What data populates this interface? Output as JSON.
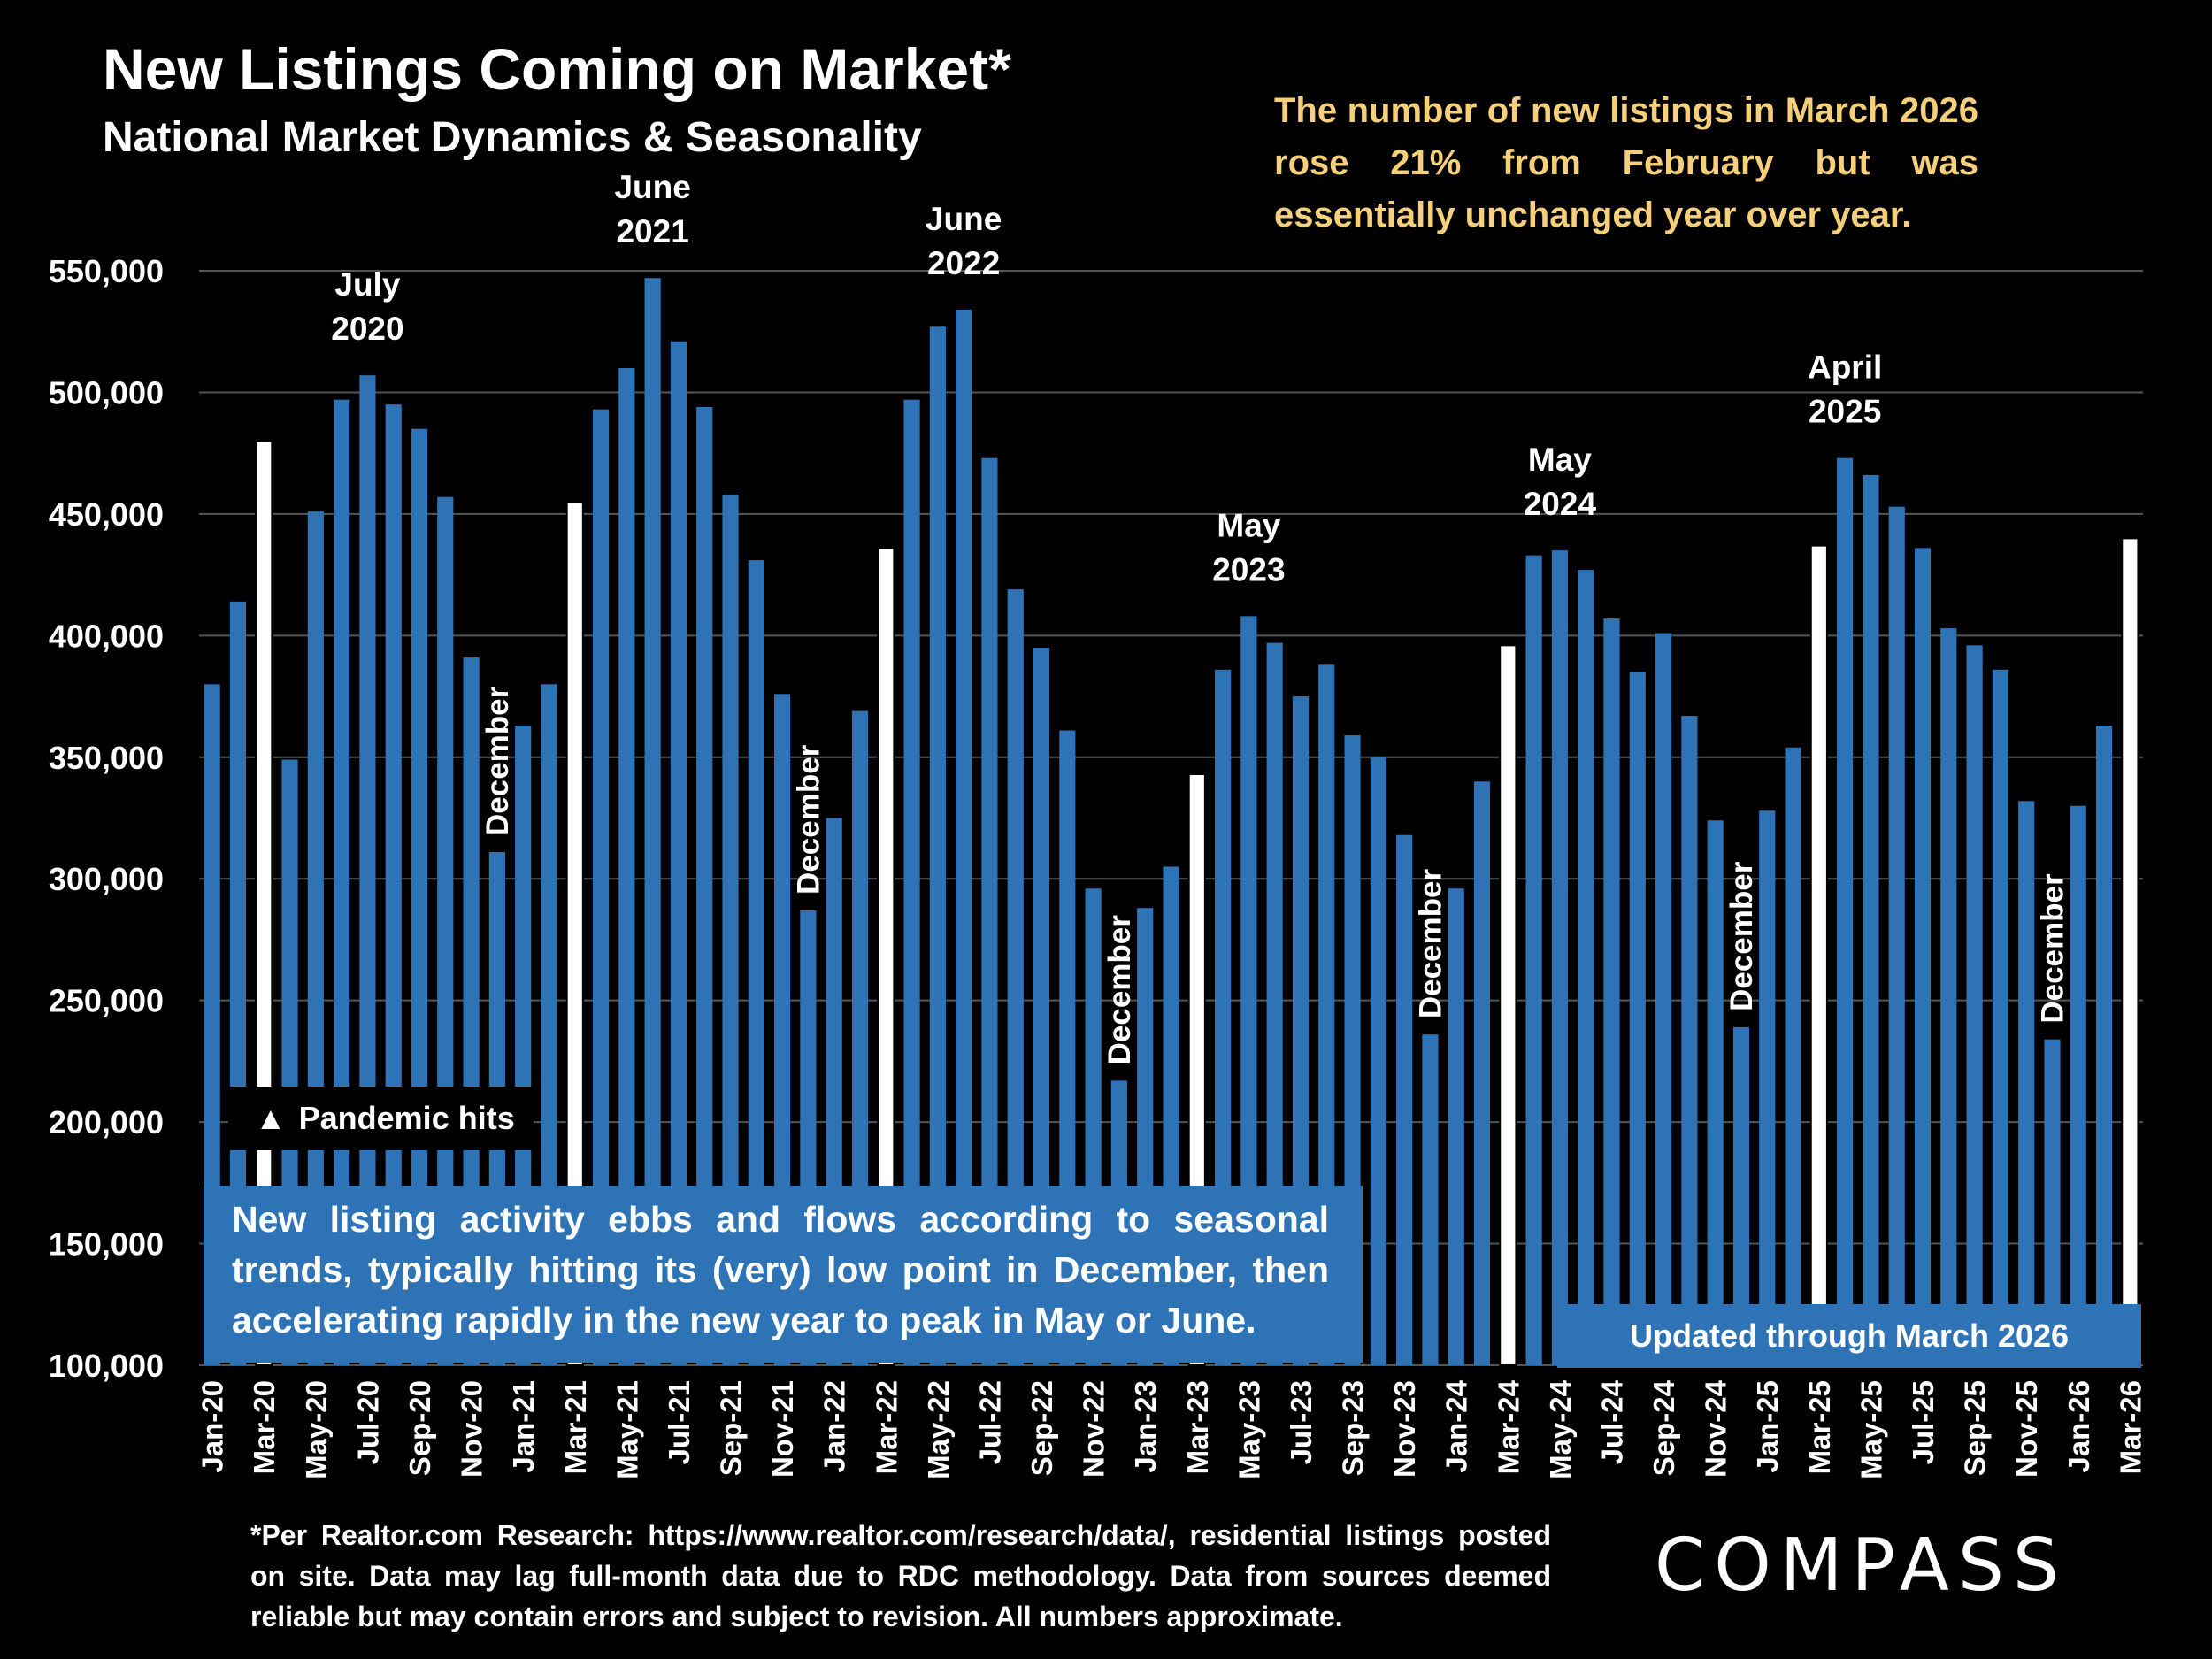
{
  "header": {
    "title": "New Listings Coming on Market*",
    "subtitle": "National Market Dynamics & Seasonality"
  },
  "headline": "The number of new listings in March 2026 rose 21% from February but was essentially unchanged year over year.",
  "note": "New listing activity ebbs and flows according to seasonal trends, typically hitting its (very) low point in December, then accelerating rapidly in the new year to peak in May or June.",
  "updated": "Updated through March 2026",
  "pandemic": "Pandemic hits",
  "footnote": "*Per Realtor.com Research:  https://www.realtor.com/research/data/, residential listings posted on site. Data may lag full-month data due to RDC methodology. Data from sources deemed reliable but may contain errors and subject to revision. All numbers approximate.",
  "logo": "COMPASS",
  "colors": {
    "bar": "#2f73b7",
    "highlight": "#ffffff",
    "headline": "#f5cf7a",
    "grid": "#555555"
  },
  "chart_data": {
    "type": "bar",
    "ylim": [
      100000,
      550000
    ],
    "yticks": [
      "100,000",
      "150,000",
      "200,000",
      "250,000",
      "300,000",
      "350,000",
      "400,000",
      "450,000",
      "500,000",
      "550,000"
    ],
    "grid": true,
    "categories": [
      "Jan-20",
      "Feb-20",
      "Mar-20",
      "Apr-20",
      "May-20",
      "Jun-20",
      "Jul-20",
      "Aug-20",
      "Sep-20",
      "Oct-20",
      "Nov-20",
      "Dec-20",
      "Jan-21",
      "Feb-21",
      "Mar-21",
      "Apr-21",
      "May-21",
      "Jun-21",
      "Jul-21",
      "Aug-21",
      "Sep-21",
      "Oct-21",
      "Nov-21",
      "Dec-21",
      "Jan-22",
      "Feb-22",
      "Mar-22",
      "Apr-22",
      "May-22",
      "Jun-22",
      "Jul-22",
      "Aug-22",
      "Sep-22",
      "Oct-22",
      "Nov-22",
      "Dec-22",
      "Jan-23",
      "Feb-23",
      "Mar-23",
      "Apr-23",
      "May-23",
      "Jun-23",
      "Jul-23",
      "Aug-23",
      "Sep-23",
      "Oct-23",
      "Nov-23",
      "Dec-23",
      "Jan-24",
      "Feb-24",
      "Mar-24",
      "Apr-24",
      "May-24",
      "Jun-24",
      "Jul-24",
      "Aug-24",
      "Sep-24",
      "Oct-24",
      "Nov-24",
      "Dec-24",
      "Jan-25",
      "Feb-25",
      "Mar-25",
      "Apr-25",
      "May-25",
      "Jun-25",
      "Jul-25",
      "Aug-25",
      "Sep-25",
      "Oct-25",
      "Nov-25",
      "Dec-25",
      "Jan-26",
      "Feb-26",
      "Mar-26"
    ],
    "values": [
      380000,
      414000,
      480000,
      349000,
      451000,
      497000,
      507000,
      495000,
      485000,
      457000,
      391000,
      311000,
      363000,
      380000,
      455000,
      493000,
      510000,
      547000,
      521000,
      494000,
      458000,
      431000,
      376000,
      287000,
      325000,
      369000,
      436000,
      497000,
      527000,
      534000,
      473000,
      419000,
      395000,
      361000,
      296000,
      217000,
      288000,
      305000,
      343000,
      386000,
      408000,
      397000,
      375000,
      388000,
      359000,
      350000,
      318000,
      236000,
      296000,
      340000,
      396000,
      433000,
      435000,
      427000,
      407000,
      385000,
      401000,
      367000,
      324000,
      239000,
      328000,
      354000,
      437000,
      473000,
      466000,
      453000,
      436000,
      403000,
      396000,
      386000,
      332000,
      234000,
      330000,
      363000,
      440000
    ],
    "highlighted": [
      "Mar-20",
      "Mar-21",
      "Mar-22",
      "Mar-23",
      "Mar-24",
      "Mar-25",
      "Mar-26"
    ],
    "peak_labels": [
      {
        "category": "Jul-20",
        "lines": [
          "July",
          "2020"
        ]
      },
      {
        "category": "Jun-21",
        "lines": [
          "June",
          "2021"
        ]
      },
      {
        "category": "Jun-22",
        "lines": [
          "June",
          "2022"
        ]
      },
      {
        "category": "May-23",
        "lines": [
          "May",
          "2023"
        ]
      },
      {
        "category": "May-24",
        "lines": [
          "May",
          "2024"
        ]
      },
      {
        "category": "Apr-25",
        "lines": [
          "April",
          "2025"
        ]
      }
    ],
    "december_labels": [
      {
        "category": "Dec-20",
        "text": "December"
      },
      {
        "category": "Dec-21",
        "text": "December"
      },
      {
        "category": "Dec-22",
        "text": "December"
      },
      {
        "category": "Dec-23",
        "text": "December"
      },
      {
        "category": "Dec-24",
        "text": "December"
      },
      {
        "category": "Dec-25",
        "text": "December"
      }
    ]
  }
}
